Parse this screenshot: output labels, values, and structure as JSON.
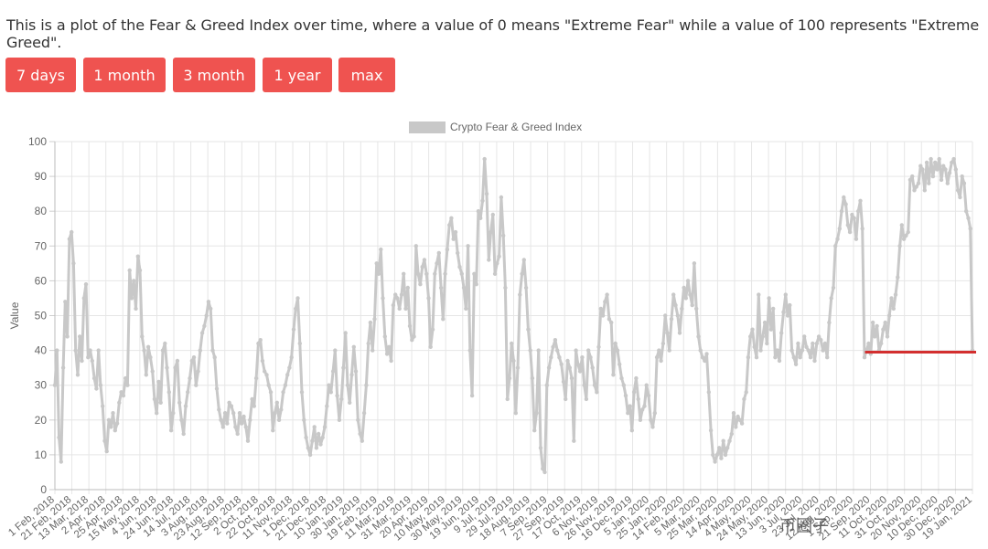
{
  "intro_text": "This is a plot of the Fear & Greed Index over time, where a value of 0 means \"Extreme Fear\" while a value of 100 represents \"Extreme Greed\".",
  "range_buttons": [
    {
      "label": "7 days"
    },
    {
      "label": "1 month"
    },
    {
      "label": "3 month"
    },
    {
      "label": "1 year"
    },
    {
      "label": "max"
    }
  ],
  "colors": {
    "button": "#ef5350",
    "series": "#c8c8c8",
    "annotation_line": "#d32f2f",
    "grid": "#e6e6e6"
  },
  "watermark": "币圈子",
  "chart_data": {
    "type": "line",
    "title": "",
    "legend": [
      "Crypto Fear & Greed Index"
    ],
    "legend_position": "top",
    "ylabel": "Value",
    "xlabel": "",
    "ylim": [
      0,
      100
    ],
    "yticks": [
      0,
      10,
      20,
      30,
      40,
      50,
      60,
      70,
      80,
      90,
      100
    ],
    "grid": true,
    "x_tick_labels": [
      "1 Feb, 2018",
      "21 Feb, 2018",
      "13 Mar, 2018",
      "2 Apr, 2018",
      "25 Apr, 2018",
      "15 May, 2018",
      "4 Jun, 2018",
      "24 Jun, 2018",
      "14 Jul, 2018",
      "3 Aug, 2018",
      "23 Aug, 2018",
      "12 Sep, 2018",
      "2 Oct, 2018",
      "22 Oct, 2018",
      "11 Nov, 2018",
      "1 Dec, 2018",
      "21 Dec, 2018",
      "10 Jan, 2019",
      "30 Jan, 2019",
      "19 Feb, 2019",
      "11 Mar, 2019",
      "31 Mar, 2019",
      "20 Apr, 2019",
      "10 May, 2019",
      "30 May, 2019",
      "19 Jun, 2019",
      "9 Jul, 2019",
      "29 Jul, 2019",
      "18 Aug, 2019",
      "7 Sep, 2019",
      "27 Sep, 2019",
      "17 Oct, 2019",
      "6 Nov, 2019",
      "26 Nov, 2019",
      "16 Dec, 2019",
      "5 Jan, 2020",
      "25 Jan, 2020",
      "14 Feb, 2020",
      "5 Mar, 2020",
      "25 Mar, 2020",
      "14 Apr, 2020",
      "4 May, 2020",
      "24 May, 2020",
      "13 Jun, 2020",
      "3 Jul, 2020",
      "23 Jul, 2020",
      "12 Aug, 2020",
      "1 Sep, 2020",
      "21 Sep, 2020",
      "11 Oct, 2020",
      "31 Oct, 2020",
      "20 Nov, 2020",
      "10 Dec, 2020",
      "30 Dec, 2020",
      "19 Jan, 2021"
    ],
    "series": [
      {
        "name": "Crypto Fear & Greed Index",
        "values": [
          30,
          40,
          15,
          8,
          35,
          54,
          44,
          72,
          74,
          65,
          40,
          33,
          44,
          37,
          55,
          59,
          38,
          40,
          37,
          32,
          29,
          40,
          30,
          24,
          14,
          11,
          20,
          18,
          22,
          17,
          19,
          25,
          28,
          27,
          32,
          30,
          63,
          55,
          60,
          52,
          67,
          63,
          44,
          40,
          33,
          41,
          38,
          34,
          26,
          22,
          31,
          25,
          40,
          42,
          35,
          28,
          17,
          22,
          35,
          37,
          25,
          20,
          16,
          24,
          28,
          32,
          37,
          38,
          30,
          34,
          40,
          45,
          47,
          50,
          54,
          52,
          40,
          38,
          29,
          23,
          20,
          18,
          22,
          19,
          25,
          24,
          22,
          18,
          16,
          22,
          19,
          21,
          18,
          14,
          20,
          26,
          24,
          32,
          42,
          43,
          37,
          34,
          33,
          30,
          28,
          17,
          22,
          25,
          20,
          23,
          28,
          30,
          33,
          35,
          38,
          46,
          52,
          55,
          42,
          28,
          20,
          15,
          12,
          10,
          14,
          18,
          12,
          16,
          13,
          15,
          18,
          24,
          30,
          28,
          34,
          40,
          27,
          20,
          26,
          35,
          45,
          30,
          25,
          33,
          41,
          34,
          20,
          16,
          14,
          22,
          30,
          42,
          48,
          40,
          49,
          65,
          62,
          69,
          55,
          44,
          39,
          41,
          37,
          53,
          56,
          55,
          52,
          56,
          62,
          52,
          58,
          47,
          43,
          44,
          70,
          62,
          59,
          64,
          66,
          62,
          55,
          41,
          46,
          62,
          65,
          68,
          58,
          49,
          62,
          69,
          76,
          78,
          72,
          74,
          68,
          64,
          62,
          58,
          52,
          70,
          40,
          27,
          62,
          59,
          80,
          78,
          83,
          95,
          85,
          66,
          74,
          79,
          62,
          65,
          67,
          84,
          73,
          58,
          26,
          32,
          42,
          37,
          22,
          35,
          56,
          62,
          66,
          58,
          46,
          40,
          32,
          17,
          22,
          40,
          12,
          6,
          5,
          30,
          35,
          38,
          41,
          43,
          40,
          38,
          36,
          31,
          26,
          37,
          35,
          32,
          14,
          40,
          36,
          34,
          38,
          30,
          26,
          40,
          38,
          35,
          30,
          28,
          41,
          52,
          50,
          54,
          56,
          49,
          48,
          33,
          42,
          40,
          36,
          32,
          30,
          27,
          22,
          24,
          17,
          28,
          32,
          26,
          20,
          23,
          24,
          30,
          27,
          20,
          18,
          22,
          38,
          40,
          37,
          42,
          50,
          45,
          40,
          49,
          56,
          53,
          50,
          45,
          52,
          58,
          55,
          60,
          56,
          53,
          65,
          52,
          44,
          40,
          38,
          37,
          39,
          28,
          17,
          10,
          8,
          10,
          12,
          9,
          14,
          10,
          12,
          14,
          16,
          22,
          18,
          21,
          20,
          19,
          26,
          28,
          38,
          44,
          46,
          41,
          38,
          56,
          40,
          44,
          48,
          42,
          55,
          46,
          52,
          38,
          40,
          37,
          45,
          51,
          56,
          50,
          53,
          40,
          38,
          36,
          42,
          38,
          40,
          44,
          41,
          40,
          38,
          42,
          37,
          42,
          44,
          43,
          40,
          42,
          38,
          48,
          55,
          58,
          70,
          72,
          75,
          80,
          84,
          82,
          76,
          74,
          79,
          78,
          72,
          80,
          83,
          75,
          38,
          40,
          42,
          39,
          48,
          44,
          47,
          40,
          42,
          46,
          48,
          44,
          50,
          55,
          52,
          56,
          61,
          70,
          76,
          72,
          73,
          74,
          89,
          90,
          86,
          87,
          88,
          93,
          92,
          86,
          94,
          88,
          95,
          90,
          94,
          92,
          95,
          89,
          93,
          92,
          88,
          91,
          94,
          95,
          92,
          86,
          84,
          90,
          88,
          80,
          78,
          75,
          40
        ]
      }
    ],
    "annotation": {
      "type": "horizontal_line",
      "y": 39.5,
      "from": "21 Sep, 2020",
      "to": "19 Jan, 2021"
    }
  }
}
